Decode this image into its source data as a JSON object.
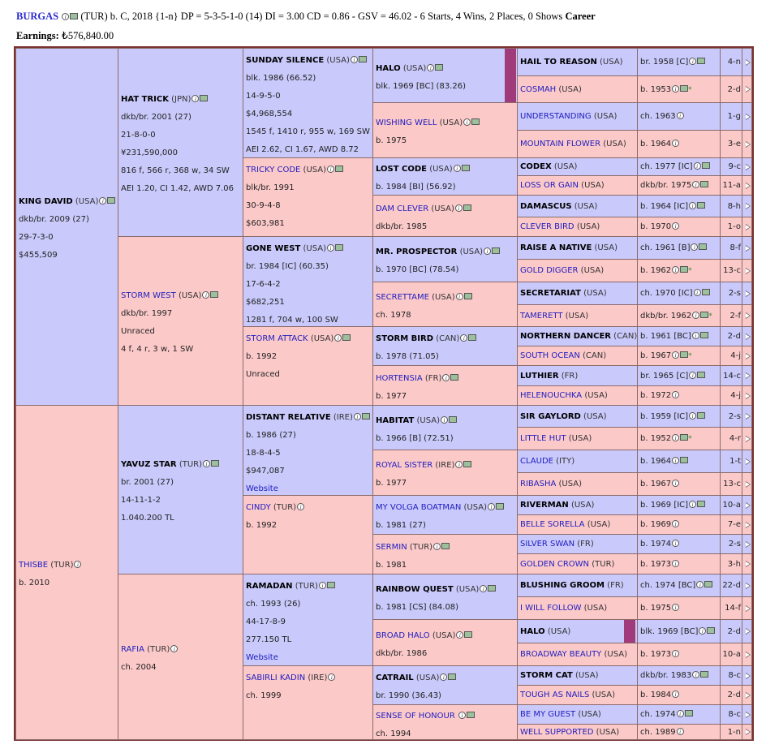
{
  "header": {
    "horse_name": "BURGAS",
    "summary": "(TUR) b. C, 2018 {1-n} DP = 5-3-5-1-0 (14) DI = 3.00   CD = 0.86 - GSV = 46.02 - 6 Starts, 4 Wins, 2 Places, 0 Shows",
    "career_label": "Career",
    "earnings_label": "Earnings:",
    "earnings_value": "₺576,840.00"
  },
  "colors": {
    "male_bg": "#c9c9fb",
    "female_bg": "#fcc9c9",
    "link": "#2020c0",
    "border": "#7a3030"
  },
  "gen1": [
    {
      "name": "KING DAVID",
      "country": "(USA)",
      "lines": [
        "dkb/br. 2009 (27)",
        "29-7-3-0",
        "$455,509"
      ]
    },
    {
      "name": "THISBE",
      "country": "(TUR)",
      "lines": [
        "b. 2010"
      ]
    }
  ],
  "gen2": [
    {
      "name": "HAT TRICK",
      "country": "(JPN)",
      "lines": [
        "dkb/br. 2001 (27)",
        "21-8-0-0",
        "¥231,590,000",
        "816 f, 566 r, 368 w, 34 SW",
        "AEI 1.20, CI 1.42, AWD 7.06"
      ]
    },
    {
      "name": "STORM WEST",
      "country": "(USA)",
      "lines": [
        "dkb/br. 1997",
        "Unraced",
        "4 f, 4 r, 3 w, 1 SW"
      ]
    },
    {
      "name": "YAVUZ STAR",
      "country": "(TUR)",
      "lines": [
        "br. 2001 (27)",
        "14-11-1-2",
        "1.040.200 TL"
      ]
    },
    {
      "name": "RAFIA",
      "country": "(TUR)",
      "lines": [
        "ch. 2004"
      ]
    }
  ],
  "gen3": [
    {
      "name": "SUNDAY SILENCE",
      "country": "(USA)",
      "lines": [
        "blk. 1986 (66.52)",
        "14-9-5-0",
        "$4,968,554",
        "1545 f, 1410 r, 955 w, 169 SW",
        "AEI 2.62, CI 1.67, AWD 8.72"
      ]
    },
    {
      "name": "TRICKY CODE",
      "country": "(USA)",
      "lines": [
        "blk/br. 1991",
        "30-9-4-8",
        "$603,981"
      ]
    },
    {
      "name": "GONE WEST",
      "country": "(USA)",
      "lines": [
        "br. 1984 [IC] (60.35)",
        "17-6-4-2",
        "$682,251",
        "1281 f, 704 w, 100 SW"
      ]
    },
    {
      "name": "STORM ATTACK",
      "country": "(USA)",
      "lines": [
        "b. 1992",
        "Unraced"
      ]
    },
    {
      "name": "DISTANT RELATIVE",
      "country": "(IRE)",
      "lines": [
        "b. 1986 (27)",
        "18-8-4-5",
        "$947,087"
      ],
      "website": "Website"
    },
    {
      "name": "CINDY",
      "country": "(TUR)",
      "lines": [
        "b. 1992"
      ]
    },
    {
      "name": "RAMADAN",
      "country": "(TUR)",
      "lines": [
        "ch. 1993 (26)",
        "44-17-8-9",
        "277.150 TL"
      ],
      "website": "Website"
    },
    {
      "name": "SABIRLI KADIN",
      "country": "(IRE)",
      "lines": [
        "ch. 1999"
      ]
    }
  ],
  "gen4": [
    {
      "name": "HALO",
      "country": "(USA)",
      "lines": [
        "blk. 1969 [BC] (83.26)"
      ]
    },
    {
      "name": "WISHING WELL",
      "country": "(USA)",
      "lines": [
        "b. 1975"
      ]
    },
    {
      "name": "LOST CODE",
      "country": "(USA)",
      "lines": [
        "b. 1984 [BI] (56.92)"
      ]
    },
    {
      "name": "DAM CLEVER",
      "country": "(USA)",
      "lines": [
        "dkb/br. 1985"
      ]
    },
    {
      "name": "MR. PROSPECTOR",
      "country": "(USA)",
      "lines": [
        "b. 1970 [BC] (78.54)"
      ]
    },
    {
      "name": "SECRETTAME",
      "country": "(USA)",
      "lines": [
        "ch. 1978"
      ]
    },
    {
      "name": "STORM BIRD",
      "country": "(CAN)",
      "lines": [
        "b. 1978 (71.05)"
      ]
    },
    {
      "name": "HORTENSIA",
      "country": "(FR)",
      "lines": [
        "b. 1977"
      ]
    },
    {
      "name": "HABITAT",
      "country": "(USA)",
      "lines": [
        "b. 1966 [B] (72.51)"
      ]
    },
    {
      "name": "ROYAL SISTER",
      "country": "(IRE)",
      "lines": [
        "b. 1977"
      ]
    },
    {
      "name": "MY VOLGA BOATMAN",
      "country": "(USA)",
      "lines": [
        "b. 1981 (27)"
      ]
    },
    {
      "name": "SERMIN",
      "country": "(TUR)",
      "lines": [
        "b. 1981"
      ]
    },
    {
      "name": "RAINBOW QUEST",
      "country": "(USA)",
      "lines": [
        "b. 1981 [CS] (84.08)"
      ]
    },
    {
      "name": "BROAD HALO",
      "country": "(USA)",
      "lines": [
        "dkb/br. 1986"
      ]
    },
    {
      "name": "CATRAIL",
      "country": "(USA)",
      "lines": [
        "br. 1990 (36.43)"
      ]
    },
    {
      "name": "SENSE OF HONOUR",
      "country": "",
      "lines": [
        "ch. 1994"
      ]
    }
  ],
  "gen5": [
    {
      "name": "HAIL TO REASON",
      "country": "(USA)",
      "detail": "br. 1958 [C]",
      "extra": "4-n"
    },
    {
      "name": "COSMAH",
      "country": "(USA)",
      "detail": "b. 1953",
      "extra": "2-d"
    },
    {
      "name": "UNDERSTANDING",
      "country": "(USA)",
      "detail": "ch. 1963",
      "extra": "1-g"
    },
    {
      "name": "MOUNTAIN FLOWER",
      "country": "(USA)",
      "detail": "b. 1964",
      "extra": "3-e"
    },
    {
      "name": "CODEX",
      "country": "(USA)",
      "detail": "ch. 1977 [IC]",
      "extra": "9-c"
    },
    {
      "name": "LOSS OR GAIN",
      "country": "(USA)",
      "detail": "dkb/br. 1975",
      "extra": "11-a"
    },
    {
      "name": "DAMASCUS",
      "country": "(USA)",
      "detail": "b. 1964 [IC]",
      "extra": "8-h"
    },
    {
      "name": "CLEVER BIRD",
      "country": "(USA)",
      "detail": "b. 1970",
      "extra": "1-o"
    },
    {
      "name": "RAISE A NATIVE",
      "country": "(USA)",
      "detail": "ch. 1961 [B]",
      "extra": "8-f"
    },
    {
      "name": "GOLD DIGGER",
      "country": "(USA)",
      "detail": "b. 1962",
      "extra": "13-c"
    },
    {
      "name": "SECRETARIAT",
      "country": "(USA)",
      "detail": "ch. 1970 [IC]",
      "extra": "2-s"
    },
    {
      "name": "TAMERETT",
      "country": "(USA)",
      "detail": "dkb/br. 1962",
      "extra": "2-f"
    },
    {
      "name": "NORTHERN DANCER",
      "country": "(CAN)",
      "detail": "b. 1961 [BC]",
      "extra": "2-d"
    },
    {
      "name": "SOUTH OCEAN",
      "country": "(CAN)",
      "detail": "b. 1967",
      "extra": "4-j"
    },
    {
      "name": "LUTHIER",
      "country": "(FR)",
      "detail": "br. 1965 [C]",
      "extra": "14-c"
    },
    {
      "name": "HELENOUCHKA",
      "country": "(USA)",
      "detail": "b. 1972",
      "extra": "4-j"
    },
    {
      "name": "SIR GAYLORD",
      "country": "(USA)",
      "detail": "b. 1959 [IC]",
      "extra": "2-s"
    },
    {
      "name": "LITTLE HUT",
      "country": "(USA)",
      "detail": "b. 1952",
      "extra": "4-r"
    },
    {
      "name": "CLAUDE",
      "country": "(ITY)",
      "detail": "b. 1964",
      "extra": "1-t"
    },
    {
      "name": "RIBASHA",
      "country": "(USA)",
      "detail": "b. 1967",
      "extra": "13-c"
    },
    {
      "name": "RIVERMAN",
      "country": "(USA)",
      "detail": "b. 1969 [IC]",
      "extra": "10-a"
    },
    {
      "name": "BELLE SORELLA",
      "country": "(USA)",
      "detail": "b. 1969",
      "extra": "7-e"
    },
    {
      "name": "SILVER SWAN",
      "country": "(FR)",
      "detail": "b. 1974",
      "extra": "2-s"
    },
    {
      "name": "GOLDEN CROWN",
      "country": "(TUR)",
      "detail": "b. 1973",
      "extra": "3-h"
    },
    {
      "name": "BLUSHING GROOM",
      "country": "(FR)",
      "detail": "ch. 1974 [BC]",
      "extra": "22-d"
    },
    {
      "name": "I WILL FOLLOW",
      "country": "(USA)",
      "detail": "b. 1975",
      "extra": "14-f"
    },
    {
      "name": "HALO",
      "country": "(USA)",
      "detail": "blk. 1969 [BC]",
      "extra": "2-d"
    },
    {
      "name": "BROADWAY BEAUTY",
      "country": "(USA)",
      "detail": "b. 1973",
      "extra": "10-a"
    },
    {
      "name": "STORM CAT",
      "country": "(USA)",
      "detail": "dkb/br. 1983",
      "extra": "8-c"
    },
    {
      "name": "TOUGH AS NAILS",
      "country": "(USA)",
      "detail": "b. 1984",
      "extra": "2-d"
    },
    {
      "name": "BE MY GUEST",
      "country": "(USA)",
      "detail": "ch. 1974",
      "extra": "8-c"
    },
    {
      "name": "WELL SUPPORTED",
      "country": "(USA)",
      "detail": "ch. 1989",
      "extra": "1-n"
    }
  ]
}
